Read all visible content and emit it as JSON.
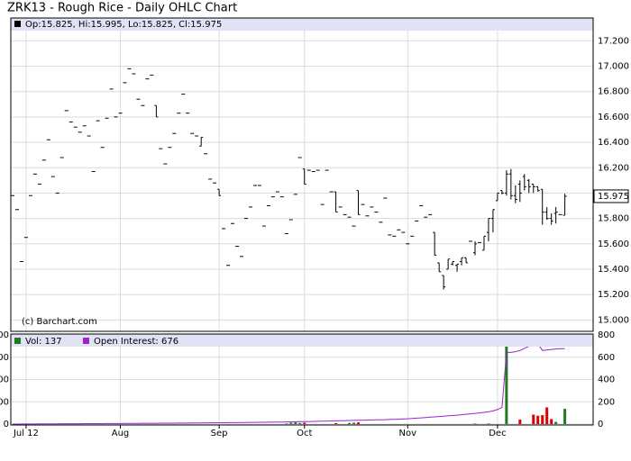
{
  "chart_data": [
    {
      "type": "ohlc",
      "title": "ZRK13 - Rough Rice - Daily OHLC Chart",
      "legend_text": "Op:15.825, Hi:15.995, Lo:15.825, Cl:15.975",
      "credit": "(c) Barchart.com",
      "color": "#000000",
      "xlim": [
        -0.4,
        129.3
      ],
      "ylim": [
        14.91,
        17.38
      ],
      "yticks": [
        {
          "value": 15.0,
          "label": "15.000"
        },
        {
          "value": 15.2,
          "label": "15.200"
        },
        {
          "value": 15.4,
          "label": "15.400"
        },
        {
          "value": 15.6,
          "label": "15.600"
        },
        {
          "value": 15.8,
          "label": "15.800"
        },
        {
          "value": 16.0,
          "label": "16.000"
        },
        {
          "value": 16.2,
          "label": "16.200"
        },
        {
          "value": 16.4,
          "label": "16.400"
        },
        {
          "value": 16.6,
          "label": "16.600"
        },
        {
          "value": 16.8,
          "label": "16.800"
        },
        {
          "value": 17.0,
          "label": "17.000"
        },
        {
          "value": 17.2,
          "label": "17.200"
        }
      ],
      "grid": true,
      "open": [
        15.98,
        15.87,
        15.46,
        15.65,
        15.98,
        16.15,
        16.07,
        16.26,
        16.42,
        16.13,
        16.0,
        16.28,
        16.65,
        16.56,
        16.52,
        16.48,
        16.53,
        16.45,
        16.17,
        16.57,
        16.36,
        16.59,
        16.82,
        16.6,
        16.63,
        16.87,
        16.98,
        16.94,
        16.74,
        16.69,
        16.9,
        16.93,
        16.69,
        16.35,
        16.23,
        16.36,
        16.47,
        16.63,
        16.78,
        16.63,
        16.47,
        16.45,
        16.37,
        16.31,
        16.11,
        16.08,
        16.03,
        15.72,
        15.43,
        15.76,
        15.58,
        15.5,
        15.8,
        15.89,
        16.06,
        16.06,
        15.74,
        15.9,
        15.97,
        16.01,
        15.97,
        15.68,
        15.79,
        15.99,
        16.28,
        16.19,
        16.18,
        16.17,
        16.18,
        15.91,
        16.18,
        16.01,
        16.01,
        15.89,
        15.83,
        15.81,
        15.74,
        16.02,
        15.91,
        15.82,
        15.89,
        15.85,
        15.77,
        15.96,
        15.67,
        15.66,
        15.71,
        15.69,
        15.6,
        15.66,
        15.78,
        15.9,
        15.81,
        15.83,
        15.69,
        15.45,
        15.35,
        15.4,
        15.44,
        15.43,
        15.46,
        15.49,
        15.62,
        15.53,
        15.61,
        15.55,
        15.69,
        15.8,
        15.94,
        16.02,
        16.0,
        16.15,
        15.98,
        16.07,
        16.13,
        16.1,
        16.07,
        16.05,
        16.03,
        15.85,
        15.8,
        15.84,
        15.83,
        15.825
      ],
      "high": [
        15.98,
        15.87,
        15.46,
        15.65,
        15.98,
        16.15,
        16.07,
        16.26,
        16.42,
        16.13,
        16.0,
        16.28,
        16.65,
        16.56,
        16.52,
        16.48,
        16.53,
        16.45,
        16.17,
        16.57,
        16.36,
        16.59,
        16.82,
        16.6,
        16.63,
        16.87,
        16.98,
        16.94,
        16.74,
        16.69,
        16.9,
        16.93,
        16.69,
        16.35,
        16.23,
        16.36,
        16.47,
        16.63,
        16.78,
        16.63,
        16.47,
        16.45,
        16.44,
        16.31,
        16.11,
        16.08,
        16.03,
        15.72,
        15.43,
        15.76,
        15.58,
        15.5,
        15.8,
        15.89,
        16.06,
        16.06,
        15.74,
        15.9,
        15.97,
        16.01,
        15.97,
        15.68,
        15.79,
        15.99,
        16.28,
        16.19,
        16.18,
        16.17,
        16.18,
        15.91,
        16.18,
        16.01,
        16.01,
        15.89,
        15.83,
        15.81,
        15.74,
        16.02,
        15.91,
        15.82,
        15.89,
        15.85,
        15.77,
        15.96,
        15.67,
        15.66,
        15.71,
        15.69,
        15.6,
        15.66,
        15.78,
        15.9,
        15.81,
        15.83,
        15.69,
        15.45,
        15.35,
        15.48,
        15.46,
        15.44,
        15.49,
        15.49,
        15.62,
        15.62,
        15.61,
        15.66,
        15.8,
        15.87,
        16.0,
        16.02,
        16.18,
        16.19,
        16.06,
        16.1,
        16.15,
        16.11,
        16.07,
        16.05,
        16.03,
        15.89,
        15.84,
        15.89,
        15.83,
        15.995
      ],
      "low": [
        15.98,
        15.87,
        15.46,
        15.65,
        15.98,
        16.15,
        16.07,
        16.26,
        16.42,
        16.13,
        16.0,
        16.28,
        16.65,
        16.56,
        16.52,
        16.48,
        16.53,
        16.45,
        16.17,
        16.57,
        16.36,
        16.59,
        16.82,
        16.6,
        16.63,
        16.87,
        16.98,
        16.94,
        16.74,
        16.69,
        16.9,
        16.93,
        16.6,
        16.35,
        16.23,
        16.36,
        16.47,
        16.63,
        16.78,
        16.63,
        16.47,
        16.45,
        16.37,
        16.31,
        16.11,
        16.08,
        15.98,
        15.72,
        15.43,
        15.76,
        15.58,
        15.5,
        15.8,
        15.89,
        16.06,
        16.06,
        15.74,
        15.9,
        15.97,
        16.01,
        15.97,
        15.68,
        15.79,
        15.99,
        16.28,
        16.07,
        16.18,
        16.17,
        16.18,
        15.91,
        16.18,
        16.01,
        15.85,
        15.89,
        15.83,
        15.81,
        15.74,
        15.83,
        15.91,
        15.82,
        15.89,
        15.85,
        15.77,
        15.96,
        15.67,
        15.66,
        15.71,
        15.69,
        15.6,
        15.66,
        15.78,
        15.9,
        15.81,
        15.83,
        15.51,
        15.38,
        15.24,
        15.4,
        15.43,
        15.38,
        15.43,
        15.45,
        15.62,
        15.51,
        15.61,
        15.55,
        15.62,
        15.69,
        15.94,
        15.99,
        15.98,
        15.95,
        15.92,
        15.93,
        16.02,
        16.0,
        16.0,
        16.01,
        15.75,
        15.79,
        15.75,
        15.76,
        15.83,
        15.825
      ],
      "close": [
        15.98,
        15.87,
        15.46,
        15.65,
        15.98,
        16.15,
        16.07,
        16.26,
        16.42,
        16.13,
        16.0,
        16.28,
        16.65,
        16.56,
        16.52,
        16.48,
        16.53,
        16.45,
        16.17,
        16.57,
        16.36,
        16.59,
        16.82,
        16.6,
        16.63,
        16.87,
        16.98,
        16.94,
        16.74,
        16.69,
        16.9,
        16.93,
        16.6,
        16.35,
        16.23,
        16.36,
        16.47,
        16.63,
        16.78,
        16.63,
        16.47,
        16.45,
        16.44,
        16.31,
        16.11,
        16.08,
        15.98,
        15.72,
        15.43,
        15.76,
        15.58,
        15.5,
        15.8,
        15.89,
        16.06,
        16.06,
        15.74,
        15.9,
        15.97,
        16.01,
        15.97,
        15.68,
        15.79,
        15.99,
        16.28,
        16.07,
        16.18,
        16.17,
        16.18,
        15.91,
        16.18,
        16.01,
        15.85,
        15.89,
        15.83,
        15.81,
        15.74,
        15.83,
        15.91,
        15.82,
        15.89,
        15.85,
        15.77,
        15.96,
        15.67,
        15.66,
        15.71,
        15.69,
        15.6,
        15.66,
        15.78,
        15.9,
        15.81,
        15.83,
        15.51,
        15.38,
        15.26,
        15.48,
        15.46,
        15.44,
        15.49,
        15.45,
        15.62,
        15.6,
        15.61,
        15.66,
        15.8,
        15.87,
        16.0,
        16.0,
        16.15,
        15.98,
        15.95,
        16.0,
        16.05,
        16.05,
        16.05,
        16.02,
        15.85,
        15.8,
        15.78,
        15.85,
        15.83,
        15.975
      ]
    },
    {
      "type": "volume",
      "xlim": [
        -0.4,
        129.3
      ],
      "xticks": [
        {
          "value": 3,
          "label": "Jul 12"
        },
        {
          "value": 24,
          "label": "Aug"
        },
        {
          "value": 46,
          "label": "Sep"
        },
        {
          "value": 65,
          "label": "Oct"
        },
        {
          "value": 88,
          "label": "Nov"
        },
        {
          "value": 108,
          "label": "Dec"
        }
      ],
      "ylim": [
        0,
        800
      ],
      "yticks": [
        0,
        200,
        400,
        600,
        800
      ],
      "grid": true,
      "series": [
        {
          "name": "Vol: 137",
          "color": "#1e7b1e",
          "down_color": "#dd0000",
          "values": [
            0,
            0,
            0,
            0,
            0,
            0,
            0,
            0,
            0,
            0,
            0,
            0,
            0,
            0,
            0,
            0,
            0,
            0,
            0,
            0,
            0,
            0,
            0,
            0,
            0,
            0,
            0,
            0,
            0,
            0,
            0,
            0,
            0,
            0,
            0,
            0,
            0,
            0,
            0,
            0,
            0,
            0,
            0,
            0,
            0,
            0,
            0,
            0,
            0,
            0,
            0,
            0,
            0,
            0,
            0,
            0,
            0,
            0,
            0,
            0,
            0,
            5,
            12,
            15,
            10,
            12,
            0,
            0,
            0,
            0,
            0,
            0,
            8,
            0,
            0,
            10,
            12,
            15,
            0,
            0,
            0,
            0,
            0,
            0,
            0,
            0,
            0,
            0,
            0,
            0,
            0,
            0,
            0,
            0,
            0,
            0,
            0,
            0,
            0,
            0,
            0,
            0,
            0,
            5,
            0,
            0,
            5,
            0,
            0,
            0,
            800,
            0,
            0,
            40,
            0,
            0,
            85,
            75,
            80,
            150,
            45,
            20,
            0,
            137
          ]
        },
        {
          "name": "Open Interest: 676",
          "color": "#a020d0",
          "values": [
            0,
            0,
            1,
            1,
            1,
            1,
            2,
            2,
            2,
            2,
            2,
            3,
            3,
            3,
            3,
            3,
            4,
            4,
            4,
            4,
            4,
            5,
            5,
            5,
            5,
            6,
            6,
            6,
            6,
            7,
            7,
            7,
            7,
            8,
            8,
            8,
            8,
            9,
            9,
            9,
            10,
            10,
            10,
            11,
            11,
            11,
            12,
            12,
            13,
            13,
            13,
            14,
            14,
            15,
            15,
            16,
            16,
            17,
            17,
            18,
            18,
            19,
            20,
            21,
            22,
            22,
            23,
            24,
            25,
            26,
            27,
            28,
            29,
            30,
            31,
            32,
            33,
            34,
            35,
            36,
            37,
            38,
            39,
            40,
            41,
            42,
            44,
            46,
            48,
            50,
            53,
            56,
            59,
            62,
            65,
            68,
            71,
            74,
            77,
            80,
            84,
            88,
            92,
            96,
            100,
            105,
            110,
            118,
            130,
            150,
            640,
            645,
            650,
            660,
            680,
            700,
            720,
            725,
            660,
            665,
            670,
            675,
            676,
            676
          ]
        }
      ]
    }
  ]
}
